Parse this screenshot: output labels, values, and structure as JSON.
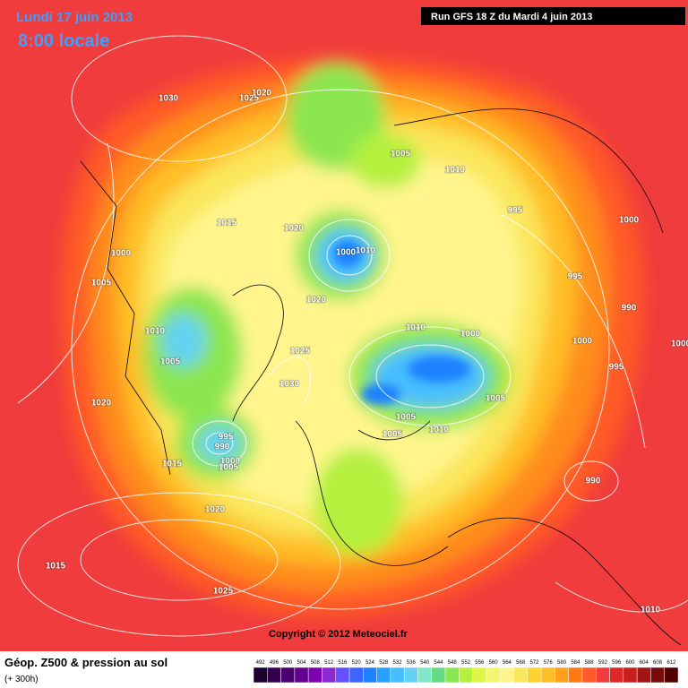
{
  "header": {
    "date": "Lundi 17 juin 2013",
    "time": "8:00 locale",
    "run": "Run GFS 18 Z du Mardi 4 juin 2013"
  },
  "map": {
    "pressure_labels": [
      1030,
      1025,
      1020,
      1005,
      1010,
      995,
      1000,
      1015,
      1020,
      1000,
      1010,
      1000,
      1005,
      995,
      990,
      1020,
      1010,
      1000,
      1000,
      1010,
      1005,
      1025,
      995,
      1000,
      1030,
      1005,
      1020,
      1005,
      1010,
      1005,
      995,
      990,
      1000,
      1005,
      1015,
      990,
      1020,
      1015,
      1025,
      1010
    ]
  },
  "copyright": "Copyright © 2012 Meteociel.fr",
  "footer": {
    "title": "Géop. Z500 & pression au sol",
    "lead": "(+ 300h)"
  },
  "scale": {
    "values": [
      492,
      496,
      500,
      504,
      508,
      512,
      516,
      520,
      524,
      528,
      532,
      536,
      540,
      544,
      548,
      552,
      556,
      560,
      564,
      568,
      572,
      576,
      580,
      584,
      588,
      592,
      596,
      600,
      604,
      608,
      612
    ],
    "colors": [
      "#1e0030",
      "#32004e",
      "#4b0070",
      "#64008f",
      "#7d00b0",
      "#8c28d0",
      "#6450ff",
      "#3c64ff",
      "#1e82ff",
      "#28a0ff",
      "#46beff",
      "#64d2f0",
      "#82e6c8",
      "#64dc82",
      "#8ce650",
      "#b4f03c",
      "#dcf546",
      "#f5f56e",
      "#fff58c",
      "#fae65a",
      "#ffd232",
      "#ffbe28",
      "#ffa01e",
      "#ff7814",
      "#ff5a28",
      "#f03c3c",
      "#dc2828",
      "#c81e1e",
      "#a01414",
      "#780a0a",
      "#500000"
    ]
  }
}
